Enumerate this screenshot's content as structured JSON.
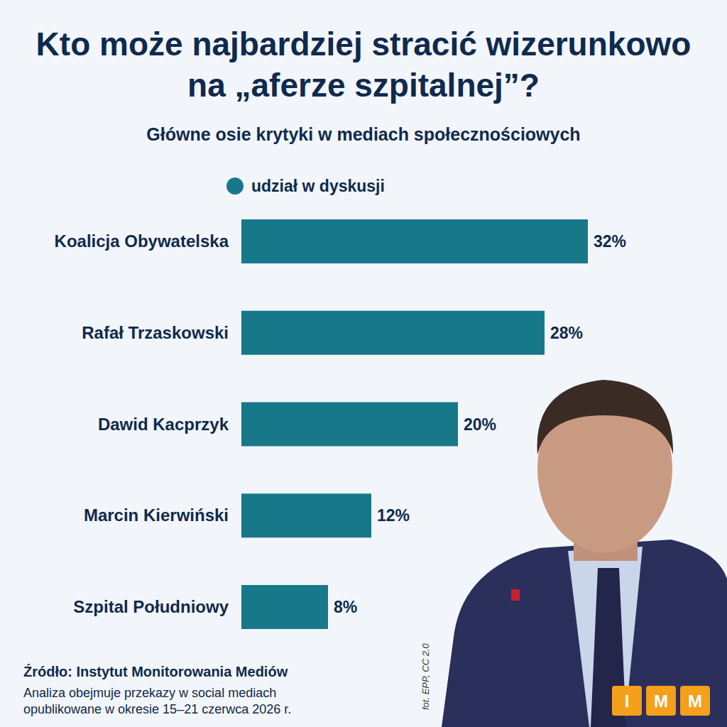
{
  "chart_data": {
    "type": "bar",
    "orientation": "horizontal",
    "title": "Kto może najbardziej stracić wizerunkowo na „aferze szpitalnej”?",
    "subtitle": "Główne osie krytyki w mediach społecznościowych",
    "categories": [
      "Koalicja Obywatelska",
      "Rafał Trzaskowski",
      "Dawid Kacprzyk",
      "Marcin Kierwiński",
      "Szpital Południowy"
    ],
    "series": [
      {
        "name": "udział w dyskusji",
        "color": "#17788a",
        "values": [
          32,
          28,
          20,
          12,
          8
        ],
        "value_labels": [
          "32%",
          "28%",
          "20%",
          "12%",
          "8%"
        ]
      }
    ],
    "xlim": [
      0,
      32
    ],
    "grid": false,
    "legend": "top",
    "data_labels": true,
    "tick_labels": "y"
  },
  "source": {
    "title": "Źródło: Instytut Monitorowania Mediów",
    "lines": [
      "Analiza obejmuje przekazy w social mediach",
      "opublikowane w okresie 15–21 czerwca 2026 r."
    ]
  },
  "photo_credit": "fot. EPP, CC 2.0",
  "logo": [
    "I",
    "M",
    "M"
  ]
}
